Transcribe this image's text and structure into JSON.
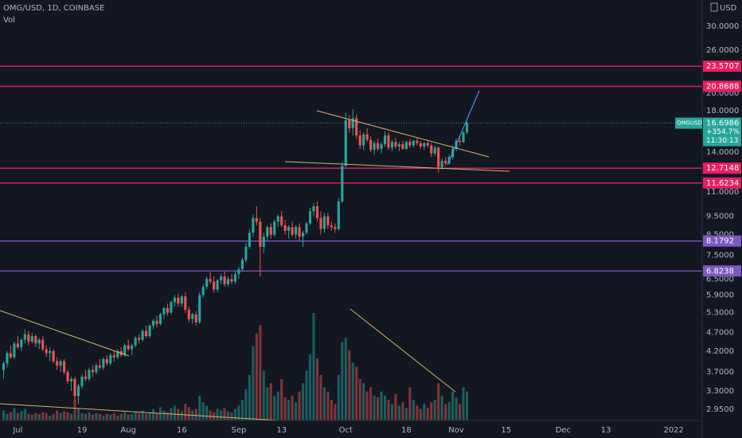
{
  "chart_data": {
    "type": "candlestick",
    "title": "OMG/USD, 1D, COINBASE",
    "volume_label": "Vol",
    "currency": "USD",
    "log_scale": true,
    "grid": false,
    "up_color": "#26a69a",
    "down_color": "#ef5350",
    "xlim": [
      -1,
      196
    ],
    "ylim": [
      2.76,
      35.2
    ],
    "yticks": [
      {
        "value": 30,
        "label": "30.0000"
      },
      {
        "value": 26,
        "label": "26.0000"
      },
      {
        "value": 20,
        "label": "20.0000"
      },
      {
        "value": 18,
        "label": "18.0000"
      },
      {
        "value": 14,
        "label": "14.0000"
      },
      {
        "value": 11,
        "label": "11.0000"
      },
      {
        "value": 9.5,
        "label": "9.5000"
      },
      {
        "value": 8.5,
        "label": "8.5000"
      },
      {
        "value": 7.5,
        "label": "7.5000"
      },
      {
        "value": 6.5,
        "label": "6.5000"
      },
      {
        "value": 5.9,
        "label": "5.9000"
      },
      {
        "value": 5.3,
        "label": "5.3000"
      },
      {
        "value": 4.7,
        "label": "4.7000"
      },
      {
        "value": 4.2,
        "label": "4.2000"
      },
      {
        "value": 3.7,
        "label": "3.7000"
      },
      {
        "value": 3.3,
        "label": "3.3000"
      },
      {
        "value": 2.95,
        "label": "2.9500"
      }
    ],
    "xticks": [
      {
        "value": 4,
        "label": "Jul"
      },
      {
        "value": 22,
        "label": "19"
      },
      {
        "value": 35,
        "label": "Aug"
      },
      {
        "value": 50,
        "label": "16"
      },
      {
        "value": 66,
        "label": "Sep"
      },
      {
        "value": 78,
        "label": "13"
      },
      {
        "value": 96,
        "label": "Oct"
      },
      {
        "value": 113,
        "label": "18"
      },
      {
        "value": 127,
        "label": "Nov"
      },
      {
        "value": 141,
        "label": "15"
      },
      {
        "value": 157,
        "label": "Dec"
      },
      {
        "value": 169,
        "label": "13"
      },
      {
        "value": 188,
        "label": "2022"
      }
    ],
    "levels": [
      {
        "value": 23.5707,
        "color": "#e91e63"
      },
      {
        "value": 20.8688,
        "color": "#e91e63"
      },
      {
        "value": 12.7148,
        "color": "#e91e63"
      },
      {
        "value": 11.6234,
        "color": "#e91e63"
      },
      {
        "value": 8.1792,
        "color": "#7e57c2"
      },
      {
        "value": 6.8238,
        "color": "#7e57c2"
      }
    ],
    "last_tag": {
      "symbol": "OMGUSD",
      "change": "+354.7%",
      "countdown": "11:30:13"
    },
    "ohlc": [
      [
        3.75,
        3.95,
        3.55,
        3.9
      ],
      [
        3.9,
        4.2,
        3.8,
        4.15
      ],
      [
        4.15,
        4.35,
        4.0,
        4.05
      ],
      [
        4.05,
        4.45,
        4.0,
        4.4
      ],
      [
        4.4,
        4.6,
        4.25,
        4.3
      ],
      [
        4.3,
        4.55,
        4.2,
        4.5
      ],
      [
        4.5,
        4.8,
        4.4,
        4.65
      ],
      [
        4.65,
        4.75,
        4.35,
        4.45
      ],
      [
        4.45,
        4.7,
        4.4,
        4.6
      ],
      [
        4.6,
        4.65,
        4.3,
        4.4
      ],
      [
        4.4,
        4.55,
        4.25,
        4.5
      ],
      [
        4.5,
        4.6,
        4.2,
        4.25
      ],
      [
        4.25,
        4.35,
        4.05,
        4.15
      ],
      [
        4.15,
        4.3,
        3.95,
        4.2
      ],
      [
        4.2,
        4.25,
        3.9,
        3.95
      ],
      [
        3.95,
        4.05,
        3.75,
        3.85
      ],
      [
        3.85,
        4.0,
        3.7,
        3.95
      ],
      [
        3.95,
        4.0,
        3.65,
        3.7
      ],
      [
        3.7,
        3.75,
        3.45,
        3.5
      ],
      [
        3.5,
        3.6,
        3.3,
        3.55
      ],
      [
        3.55,
        3.6,
        3.1,
        3.2
      ],
      [
        3.2,
        3.45,
        3.05,
        3.4
      ],
      [
        3.4,
        3.65,
        3.35,
        3.6
      ],
      [
        3.6,
        3.75,
        3.5,
        3.55
      ],
      [
        3.55,
        3.8,
        3.5,
        3.75
      ],
      [
        3.75,
        3.85,
        3.6,
        3.7
      ],
      [
        3.7,
        3.9,
        3.65,
        3.85
      ],
      [
        3.85,
        4.0,
        3.75,
        3.8
      ],
      [
        3.8,
        4.05,
        3.75,
        4.0
      ],
      [
        4.0,
        4.1,
        3.85,
        3.9
      ],
      [
        3.9,
        4.15,
        3.85,
        4.1
      ],
      [
        4.1,
        4.2,
        3.95,
        4.05
      ],
      [
        4.05,
        4.25,
        4.0,
        4.2
      ],
      [
        4.2,
        4.3,
        4.05,
        4.1
      ],
      [
        4.1,
        4.4,
        4.05,
        4.35
      ],
      [
        4.35,
        4.5,
        4.2,
        4.25
      ],
      [
        4.25,
        4.4,
        4.1,
        4.35
      ],
      [
        4.35,
        4.6,
        4.3,
        4.55
      ],
      [
        4.55,
        4.65,
        4.4,
        4.5
      ],
      [
        4.5,
        4.8,
        4.45,
        4.75
      ],
      [
        4.75,
        4.9,
        4.55,
        4.6
      ],
      [
        4.6,
        4.95,
        4.55,
        4.9
      ],
      [
        4.9,
        5.1,
        4.8,
        5.05
      ],
      [
        5.05,
        5.2,
        4.85,
        4.95
      ],
      [
        4.95,
        5.3,
        4.9,
        5.25
      ],
      [
        5.25,
        5.5,
        5.1,
        5.45
      ],
      [
        5.45,
        5.6,
        5.2,
        5.3
      ],
      [
        5.3,
        5.7,
        5.25,
        5.65
      ],
      [
        5.65,
        5.9,
        5.5,
        5.8
      ],
      [
        5.8,
        5.95,
        5.5,
        5.6
      ],
      [
        5.6,
        5.9,
        5.5,
        5.85
      ],
      [
        5.85,
        6.0,
        5.3,
        5.4
      ],
      [
        5.4,
        5.5,
        5.0,
        5.1
      ],
      [
        5.1,
        5.3,
        4.95,
        5.25
      ],
      [
        5.25,
        5.35,
        4.9,
        5.0
      ],
      [
        5.0,
        6.0,
        4.95,
        5.9
      ],
      [
        5.9,
        6.3,
        5.8,
        6.2
      ],
      [
        6.2,
        6.6,
        6.1,
        6.5
      ],
      [
        6.5,
        6.8,
        6.3,
        6.4
      ],
      [
        6.4,
        6.6,
        6.0,
        6.1
      ],
      [
        6.1,
        6.5,
        6.0,
        6.45
      ],
      [
        6.45,
        6.7,
        6.3,
        6.6
      ],
      [
        6.6,
        6.8,
        6.2,
        6.3
      ],
      [
        6.3,
        6.6,
        6.2,
        6.5
      ],
      [
        6.5,
        6.7,
        6.3,
        6.4
      ],
      [
        6.4,
        6.8,
        6.3,
        6.7
      ],
      [
        6.7,
        7.0,
        6.5,
        6.9
      ],
      [
        6.9,
        7.4,
        6.8,
        7.3
      ],
      [
        7.3,
        8.1,
        7.2,
        7.9
      ],
      [
        7.9,
        8.8,
        7.8,
        8.6
      ],
      [
        8.6,
        9.6,
        8.4,
        9.4
      ],
      [
        9.4,
        10.1,
        9.0,
        9.2
      ],
      [
        9.2,
        9.4,
        6.6,
        7.9
      ],
      [
        7.9,
        8.6,
        7.6,
        8.4
      ],
      [
        8.4,
        9.0,
        8.2,
        8.9
      ],
      [
        8.9,
        9.1,
        8.3,
        8.5
      ],
      [
        8.5,
        9.3,
        8.4,
        9.2
      ],
      [
        9.2,
        9.6,
        8.9,
        9.5
      ],
      [
        9.5,
        9.8,
        8.9,
        9.0
      ],
      [
        9.0,
        9.3,
        8.5,
        8.7
      ],
      [
        8.7,
        9.0,
        8.3,
        8.9
      ],
      [
        8.9,
        9.2,
        8.4,
        8.5
      ],
      [
        8.5,
        9.0,
        8.3,
        8.9
      ],
      [
        8.9,
        9.1,
        8.2,
        8.4
      ],
      [
        8.4,
        8.7,
        7.9,
        8.6
      ],
      [
        8.6,
        9.2,
        8.5,
        9.1
      ],
      [
        9.1,
        10.0,
        9.0,
        9.8
      ],
      [
        9.8,
        10.3,
        9.5,
        10.1
      ],
      [
        10.1,
        10.4,
        9.2,
        9.4
      ],
      [
        9.4,
        9.8,
        8.5,
        8.8
      ],
      [
        8.8,
        9.7,
        8.6,
        9.5
      ],
      [
        9.5,
        9.7,
        8.8,
        9.0
      ],
      [
        9.0,
        9.2,
        8.7,
        8.9
      ],
      [
        8.9,
        9.1,
        8.6,
        8.8
      ],
      [
        8.8,
        10.6,
        8.7,
        10.4
      ],
      [
        10.4,
        13.2,
        10.3,
        12.9
      ],
      [
        12.9,
        17.8,
        12.8,
        17.0
      ],
      [
        17.0,
        17.5,
        15.8,
        16.2
      ],
      [
        16.2,
        18.2,
        15.5,
        17.2
      ],
      [
        17.2,
        17.6,
        15.2,
        15.5
      ],
      [
        15.5,
        16.0,
        14.3,
        14.6
      ],
      [
        14.6,
        15.8,
        14.2,
        15.6
      ],
      [
        15.6,
        16.2,
        14.9,
        15.1
      ],
      [
        15.1,
        15.4,
        14.0,
        14.2
      ],
      [
        14.2,
        15.0,
        13.8,
        14.8
      ],
      [
        14.8,
        15.2,
        14.1,
        14.3
      ],
      [
        14.3,
        14.9,
        13.9,
        14.7
      ],
      [
        14.7,
        15.9,
        14.5,
        15.5
      ],
      [
        15.5,
        15.8,
        14.2,
        14.4
      ],
      [
        14.4,
        15.1,
        14.1,
        14.9
      ],
      [
        14.9,
        15.3,
        14.3,
        14.5
      ],
      [
        14.5,
        14.9,
        14.1,
        14.7
      ],
      [
        14.7,
        15.0,
        14.2,
        14.3
      ],
      [
        14.3,
        15.0,
        14.2,
        14.9
      ],
      [
        14.9,
        15.2,
        14.4,
        14.6
      ],
      [
        14.6,
        15.1,
        14.4,
        15.0
      ],
      [
        15.0,
        15.3,
        14.6,
        14.8
      ],
      [
        14.8,
        15.0,
        14.3,
        14.5
      ],
      [
        14.5,
        14.9,
        14.2,
        14.8
      ],
      [
        14.8,
        15.1,
        14.4,
        14.6
      ],
      [
        14.6,
        14.8,
        13.6,
        13.9
      ],
      [
        13.9,
        14.6,
        13.7,
        14.4
      ],
      [
        14.4,
        14.5,
        12.4,
        12.8
      ],
      [
        12.8,
        13.5,
        12.6,
        13.3
      ],
      [
        13.3,
        13.6,
        12.9,
        13.1
      ],
      [
        13.1,
        13.8,
        13.0,
        13.6
      ],
      [
        13.6,
        14.6,
        13.4,
        14.3
      ],
      [
        14.3,
        15.2,
        14.1,
        15.0
      ],
      [
        15.0,
        15.5,
        14.6,
        14.9
      ],
      [
        14.9,
        15.9,
        14.8,
        15.8
      ],
      [
        15.8,
        16.9,
        15.6,
        16.6986
      ]
    ],
    "volume": [
      12,
      8,
      10,
      15,
      9,
      11,
      14,
      8,
      7,
      9,
      8,
      10,
      9,
      6,
      8,
      12,
      9,
      11,
      10,
      8,
      25,
      14,
      9,
      8,
      10,
      7,
      9,
      8,
      6,
      8,
      7,
      9,
      6,
      8,
      10,
      7,
      8,
      11,
      9,
      12,
      8,
      10,
      14,
      9,
      16,
      12,
      10,
      15,
      18,
      14,
      11,
      20,
      16,
      12,
      14,
      30,
      22,
      18,
      12,
      10,
      14,
      12,
      15,
      11,
      10,
      14,
      18,
      25,
      38,
      55,
      90,
      105,
      115,
      60,
      40,
      45,
      30,
      35,
      50,
      28,
      25,
      30,
      22,
      35,
      45,
      60,
      80,
      130,
      75,
      55,
      40,
      35,
      25,
      20,
      55,
      95,
      100,
      85,
      70,
      65,
      50,
      45,
      35,
      40,
      30,
      28,
      35,
      30,
      25,
      20,
      32,
      18,
      22,
      15,
      40,
      25,
      18,
      14,
      20,
      15,
      22,
      25,
      45,
      30,
      20,
      22,
      35,
      28,
      20,
      40,
      35
    ]
  }
}
